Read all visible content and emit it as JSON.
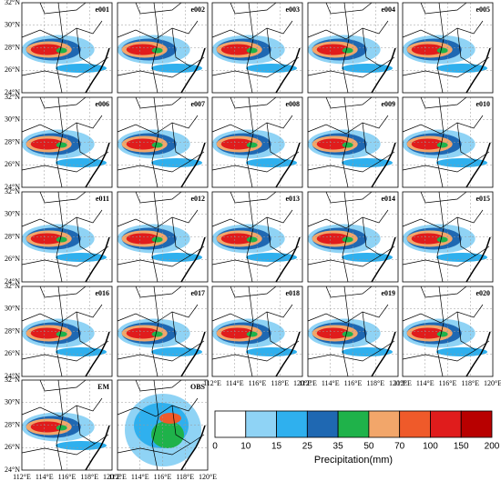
{
  "panels": [
    "e001",
    "e002",
    "e003",
    "e004",
    "e005",
    "e006",
    "e007",
    "e008",
    "e009",
    "e010",
    "e011",
    "e012",
    "e013",
    "e014",
    "e015",
    "e016",
    "e017",
    "e018",
    "e019",
    "e020",
    "EM",
    "OBS"
  ],
  "lat_ticks": [
    "32°N",
    "30°N",
    "28°N",
    "26°N",
    "24°N"
  ],
  "lon_ticks": [
    "112°E",
    "114°E",
    "116°E",
    "118°E",
    "120°E"
  ],
  "colorbar": {
    "label": "Precipitation(mm)",
    "ticks": [
      "0",
      "10",
      "15",
      "25",
      "35",
      "50",
      "70",
      "100",
      "150",
      "200"
    ],
    "colors": [
      "#ffffff",
      "#8fd3f5",
      "#2fb0ee",
      "#1f68b2",
      "#1fb24a",
      "#f2a66a",
      "#ef5a2a",
      "#e01c1c",
      "#b80000"
    ]
  }
}
